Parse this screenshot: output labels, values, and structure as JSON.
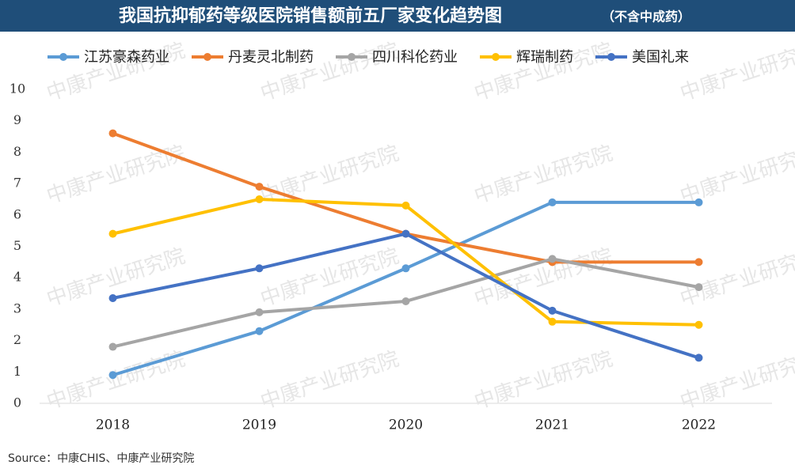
{
  "chart_data": {
    "type": "line",
    "title": "我国抗抑郁药等级医院销售额前五厂家变化趋势图",
    "subtitle": "（不含中成药）",
    "categories": [
      "2018",
      "2019",
      "2020",
      "2021",
      "2022"
    ],
    "series": [
      {
        "name": "江苏豪森药业",
        "color": "#5b9bd5",
        "values": [
          0.9,
          2.3,
          4.3,
          6.4,
          6.4
        ]
      },
      {
        "name": "丹麦灵北制药",
        "color": "#ed7d31",
        "values": [
          8.6,
          6.9,
          5.4,
          4.5,
          4.5
        ]
      },
      {
        "name": "四川科伦药业",
        "color": "#a5a5a5",
        "values": [
          1.8,
          2.9,
          3.25,
          4.6,
          3.7
        ]
      },
      {
        "name": "辉瑞制药",
        "color": "#ffc000",
        "values": [
          5.4,
          6.5,
          6.3,
          2.6,
          2.5
        ]
      },
      {
        "name": "美国礼来",
        "color": "#4472c4",
        "values": [
          3.35,
          4.3,
          5.4,
          2.95,
          1.45
        ]
      }
    ],
    "ylim": [
      0,
      10
    ],
    "yticks": [
      0,
      1,
      2,
      3,
      4,
      5,
      6,
      7,
      8,
      9,
      10
    ],
    "grid": false,
    "watermark": "中康产业研究院",
    "source": "Source：中康CHIS、中康产业研究院"
  }
}
